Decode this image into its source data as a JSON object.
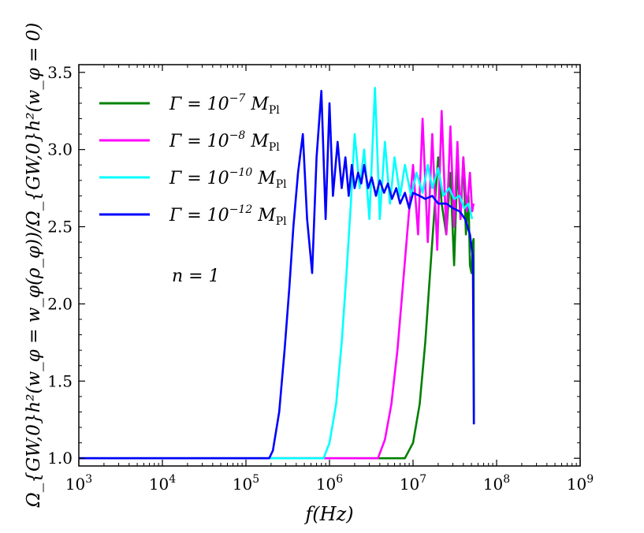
{
  "chart_data": {
    "type": "line",
    "title": "",
    "xlabel": "f(Hz)",
    "ylabel": "Ω_{GW,0}h²(w_φ = w_φ(ρ_φ))/Ω_{GW,0}h²(w_φ = 0)",
    "x_scale": "log",
    "xlim": [
      1000,
      1000000000
    ],
    "ylim": [
      0.95,
      3.55
    ],
    "x_ticks": [
      1000,
      10000,
      100000,
      1000000,
      10000000,
      100000000,
      1000000000
    ],
    "x_tick_labels": [
      {
        "base": "10",
        "exp": "3"
      },
      {
        "base": "10",
        "exp": "4"
      },
      {
        "base": "10",
        "exp": "5"
      },
      {
        "base": "10",
        "exp": "6"
      },
      {
        "base": "10",
        "exp": "7"
      },
      {
        "base": "10",
        "exp": "8"
      },
      {
        "base": "10",
        "exp": "9"
      }
    ],
    "y_ticks": [
      1.0,
      1.5,
      2.0,
      2.5,
      3.0,
      3.5
    ],
    "y_tick_labels": [
      "1.0",
      "1.5",
      "2.0",
      "2.5",
      "3.0",
      "3.5"
    ],
    "grid": false,
    "legend_position": "upper-left",
    "annotation": "n = 1",
    "series": [
      {
        "name": "Γ = 10^{-7} M_Pl",
        "label": {
          "pre": "Γ = 10",
          "exp": "−7",
          "mid": " M",
          "sub": "Pl"
        },
        "color": "#008000",
        "x": [
          1000,
          3000000,
          8000000,
          10000000,
          12000000,
          14000000,
          16000000,
          18000000,
          20000000,
          22000000,
          25000000,
          28000000,
          31000000,
          34000000,
          37000000,
          40000000,
          43000000,
          46000000,
          48000000,
          50000000,
          52000000,
          53000000,
          53500000
        ],
        "y": [
          1.0,
          1.0,
          1.0,
          1.1,
          1.35,
          1.75,
          2.2,
          2.6,
          2.95,
          2.65,
          2.45,
          2.85,
          2.25,
          2.9,
          2.55,
          2.95,
          2.45,
          2.7,
          2.25,
          2.2,
          2.4,
          2.42,
          1.22
        ]
      },
      {
        "name": "Γ = 10^{-8} M_Pl",
        "label": {
          "pre": "Γ = 10",
          "exp": "−8",
          "mid": " M",
          "sub": "Pl"
        },
        "color": "#ff00ff",
        "x": [
          1000,
          2000000,
          3800000,
          4600000,
          5500000,
          6500000,
          7500000,
          8500000,
          10000000,
          11500000,
          13000000,
          15000000,
          17000000,
          19500000,
          22000000,
          25000000,
          28000000,
          31000000,
          34000000,
          37000000,
          40000000,
          44000000,
          48000000,
          51000000,
          53000000
        ],
        "y": [
          1.0,
          1.0,
          1.0,
          1.12,
          1.35,
          1.7,
          2.1,
          2.45,
          2.9,
          2.45,
          3.2,
          2.4,
          3.1,
          2.35,
          3.25,
          2.45,
          3.15,
          2.5,
          3.05,
          2.55,
          2.95,
          2.6,
          2.85,
          2.6,
          2.65
        ]
      },
      {
        "name": "Γ = 10^{-10} M_Pl",
        "label": {
          "pre": "Γ = 10",
          "exp": "−10",
          "mid": " M",
          "sub": "Pl"
        },
        "color": "#00ffff",
        "x": [
          1000,
          400000,
          850000,
          1000000,
          1200000,
          1400000,
          1600000,
          1800000,
          2000000,
          2300000,
          2600000,
          3000000,
          3500000,
          4000000,
          4600000,
          5300000,
          6000000,
          7000000,
          8000000,
          9500000,
          11000000,
          13000000,
          15000000,
          17000000,
          20000000,
          23000000,
          27000000,
          31000000,
          36000000,
          41000000,
          46000000,
          51000000
        ],
        "y": [
          1.0,
          1.0,
          1.0,
          1.1,
          1.35,
          1.75,
          2.2,
          2.65,
          3.1,
          2.75,
          3.0,
          2.55,
          3.4,
          2.55,
          3.05,
          2.65,
          2.95,
          2.7,
          2.9,
          2.7,
          2.85,
          2.72,
          2.9,
          2.75,
          2.88,
          2.7,
          2.75,
          2.68,
          2.7,
          2.62,
          2.65,
          2.55
        ]
      },
      {
        "name": "Γ = 10^{-12} M_Pl",
        "label": {
          "pre": "Γ = 10",
          "exp": "−12",
          "mid": " M",
          "sub": "Pl"
        },
        "color": "#0000ff",
        "x": [
          1000,
          190000,
          210000,
          250000,
          290000,
          330000,
          370000,
          420000,
          480000,
          540000,
          620000,
          700000,
          800000,
          900000,
          1000000,
          1100000,
          1250000,
          1400000,
          1550000,
          1700000,
          1850000,
          2000000,
          2200000,
          2400000,
          2600000,
          2900000,
          3200000,
          3600000,
          4000000,
          4500000,
          5000000,
          5600000,
          6300000,
          7000000,
          8000000,
          9000000,
          10000000,
          12000000,
          14000000,
          17000000,
          20000000,
          25000000,
          30000000,
          36000000,
          42000000,
          48000000,
          52000000,
          53500000
        ],
        "y": [
          1.0,
          1.0,
          1.05,
          1.3,
          1.7,
          2.1,
          2.5,
          2.85,
          3.1,
          2.55,
          2.2,
          2.95,
          3.38,
          2.55,
          3.3,
          2.7,
          3.05,
          2.75,
          2.95,
          2.7,
          2.9,
          2.75,
          2.85,
          2.78,
          2.9,
          2.75,
          2.82,
          2.7,
          2.8,
          2.72,
          2.78,
          2.68,
          2.75,
          2.65,
          2.72,
          2.62,
          2.72,
          2.7,
          2.68,
          2.7,
          2.65,
          2.65,
          2.62,
          2.6,
          2.55,
          2.45,
          2.3,
          1.22
        ]
      }
    ]
  }
}
